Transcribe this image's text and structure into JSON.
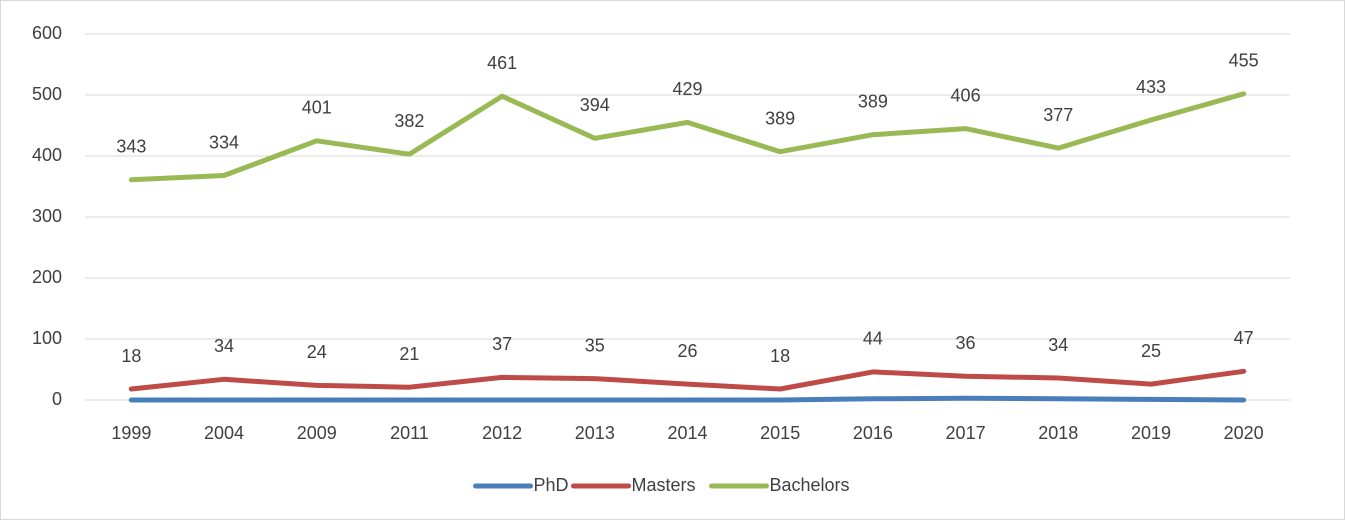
{
  "chart_data": {
    "type": "line",
    "stacked": true,
    "categories": [
      "1999",
      "2004",
      "2009",
      "2011",
      "2012",
      "2013",
      "2014",
      "2015",
      "2016",
      "2017",
      "2018",
      "2019",
      "2020"
    ],
    "series": [
      {
        "name": "PhD",
        "color": "#4a7ebb",
        "show_labels": false,
        "values": [
          0,
          0,
          0,
          0,
          0,
          0,
          0,
          0,
          2,
          3,
          2,
          1,
          0
        ]
      },
      {
        "name": "Masters",
        "color": "#be4b48",
        "show_labels": true,
        "values": [
          18,
          34,
          24,
          21,
          37,
          35,
          26,
          18,
          44,
          36,
          34,
          25,
          47
        ]
      },
      {
        "name": "Bachelors",
        "color": "#98b954",
        "show_labels": true,
        "values": [
          343,
          334,
          401,
          382,
          461,
          394,
          429,
          389,
          389,
          406,
          377,
          433,
          455
        ]
      }
    ],
    "ylim": [
      0,
      600
    ],
    "yticks": [
      0,
      100,
      200,
      300,
      400,
      500,
      600
    ],
    "grid": true,
    "legend": "bottom"
  }
}
